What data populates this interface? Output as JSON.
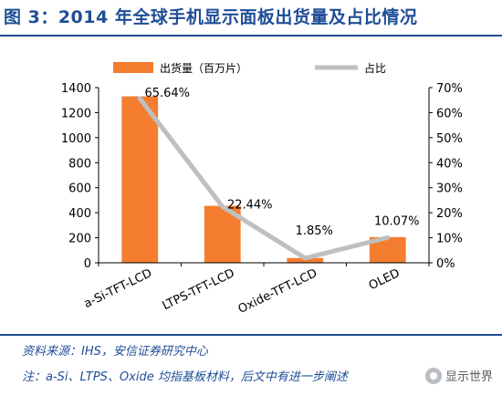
{
  "title": "图 3：2014 年全球手机显示面板出货量及占比情况",
  "source": "资料来源：IHS，安信证券研究中心",
  "note": "注：a-Si、LTPS、Oxide 均指基板材料，后文中有进一步阐述",
  "watermark": "显示世界",
  "colors": {
    "bar": "#f47d30",
    "line": "#bfbfbf",
    "title": "#1f4e96"
  },
  "chart_data": {
    "type": "bar",
    "categories": [
      "a-Si-TFT-LCD",
      "LTPS-TFT-LCD",
      "Oxide-TFT-LCD",
      "OLED"
    ],
    "series": [
      {
        "name": "出货量（百万片）",
        "type": "bar",
        "axis": "left",
        "values": [
          1330,
          455,
          38,
          205
        ]
      },
      {
        "name": "占比",
        "type": "line",
        "axis": "right",
        "values": [
          65.64,
          22.44,
          1.85,
          10.07
        ],
        "labels": [
          "65.64%",
          "22.44%",
          "1.85%",
          "10.07%"
        ]
      }
    ],
    "y_left": {
      "ylim": [
        0,
        1400
      ],
      "ticks": [
        "0",
        "200",
        "400",
        "600",
        "800",
        "1000",
        "1200",
        "1400"
      ]
    },
    "y_right": {
      "ylim": [
        0,
        70
      ],
      "ticks": [
        "0%",
        "10%",
        "20%",
        "30%",
        "40%",
        "50%",
        "60%",
        "70%"
      ]
    },
    "legend": "top",
    "grid": false
  }
}
